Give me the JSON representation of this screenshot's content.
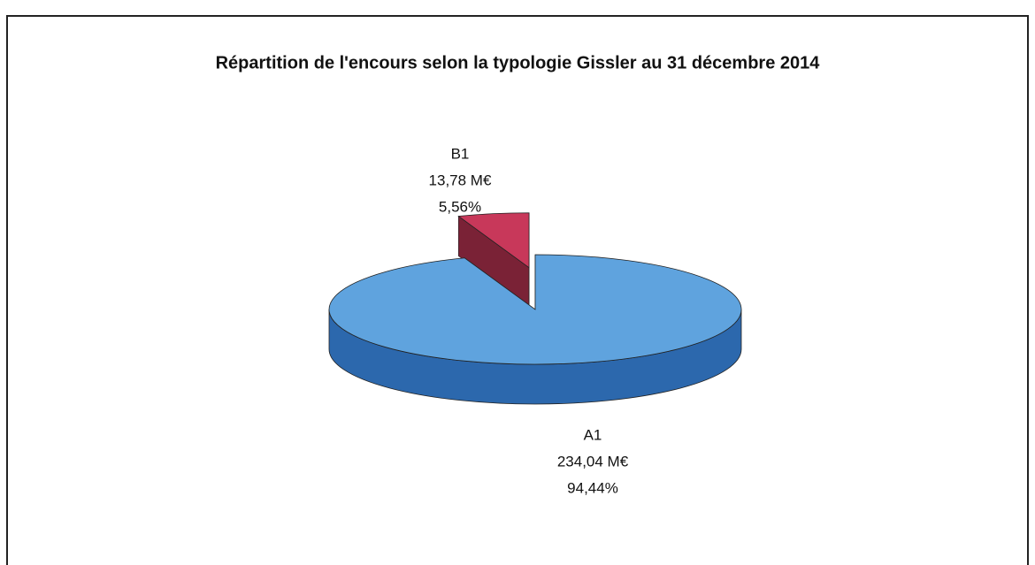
{
  "chart_data": {
    "type": "pie3d",
    "title": "Répartition de l'encours selon la typologie Gissler au 31 décembre 2014",
    "categories": [
      "A1",
      "B1"
    ],
    "values": [
      234.04,
      13.78
    ],
    "value_labels": [
      "234,04 M€",
      "13,78 M€"
    ],
    "percent": [
      94.44,
      5.56
    ],
    "percent_labels": [
      "94,44%",
      "5,56%"
    ],
    "colors": [
      "#5fa3de",
      "#c8385a"
    ],
    "side_colors": [
      "#2c68ad",
      "#7a2236"
    ],
    "exploded": [
      false,
      true
    ]
  }
}
